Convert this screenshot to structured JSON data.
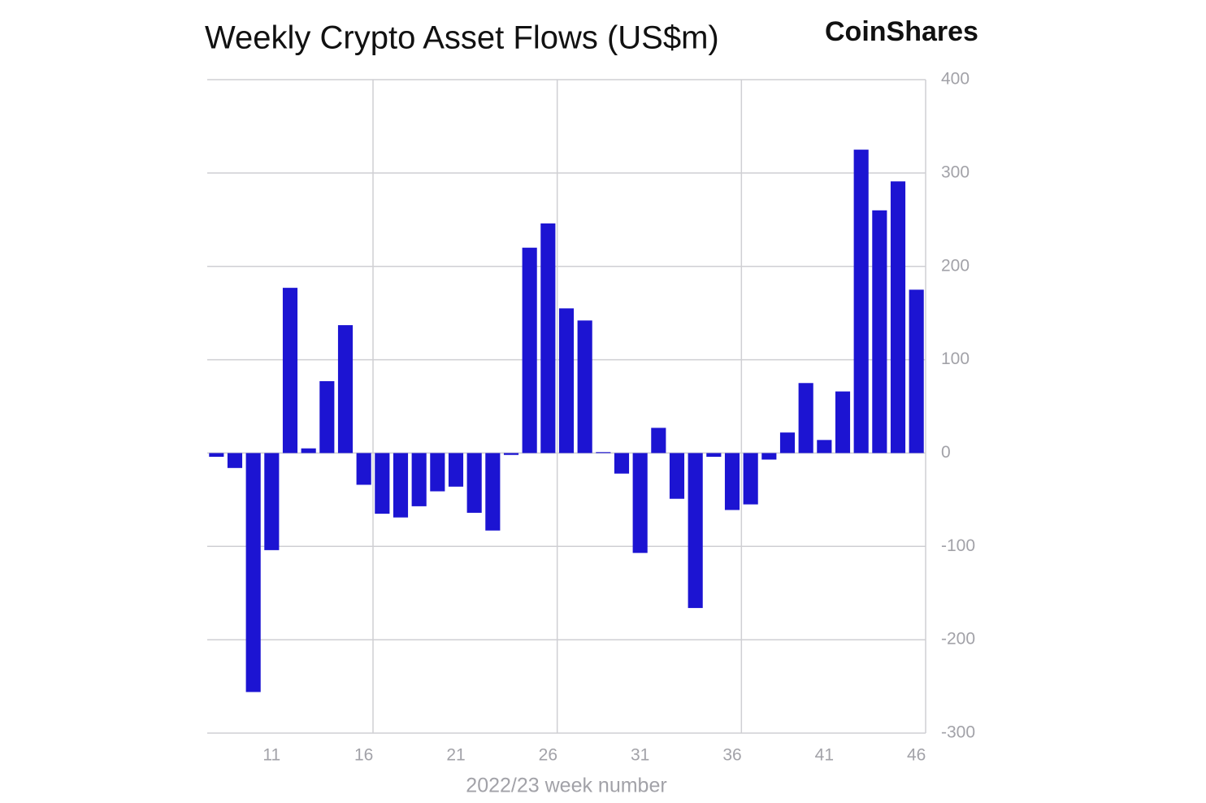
{
  "chart_data": {
    "type": "bar",
    "title": "Weekly Crypto Asset Flows (US$m)",
    "brand": "CoinShares",
    "x_label": "2022/23 week number",
    "categories": [
      null,
      null,
      null,
      "11",
      null,
      null,
      null,
      null,
      "16",
      null,
      null,
      null,
      null,
      "21",
      null,
      null,
      null,
      null,
      "26",
      null,
      null,
      null,
      null,
      "31",
      null,
      null,
      null,
      null,
      "36",
      null,
      null,
      null,
      null,
      "41",
      null,
      null,
      null,
      null,
      "46"
    ],
    "values": [
      -4,
      -16,
      -256,
      -104,
      177,
      5,
      77,
      137,
      -34,
      -65,
      -69,
      -57,
      -41,
      -36,
      -64,
      -83,
      -2,
      220,
      246,
      155,
      142,
      1,
      -22,
      -107,
      27,
      -49,
      -166,
      -4,
      -61,
      -55,
      -7,
      22,
      75,
      14,
      66,
      325,
      260,
      291,
      175
    ],
    "color": "#1c14d2",
    "ylim": [
      -300,
      400
    ],
    "yticks": [
      -300,
      -200,
      -100,
      0,
      100,
      200,
      300,
      400
    ],
    "grid": true
  }
}
